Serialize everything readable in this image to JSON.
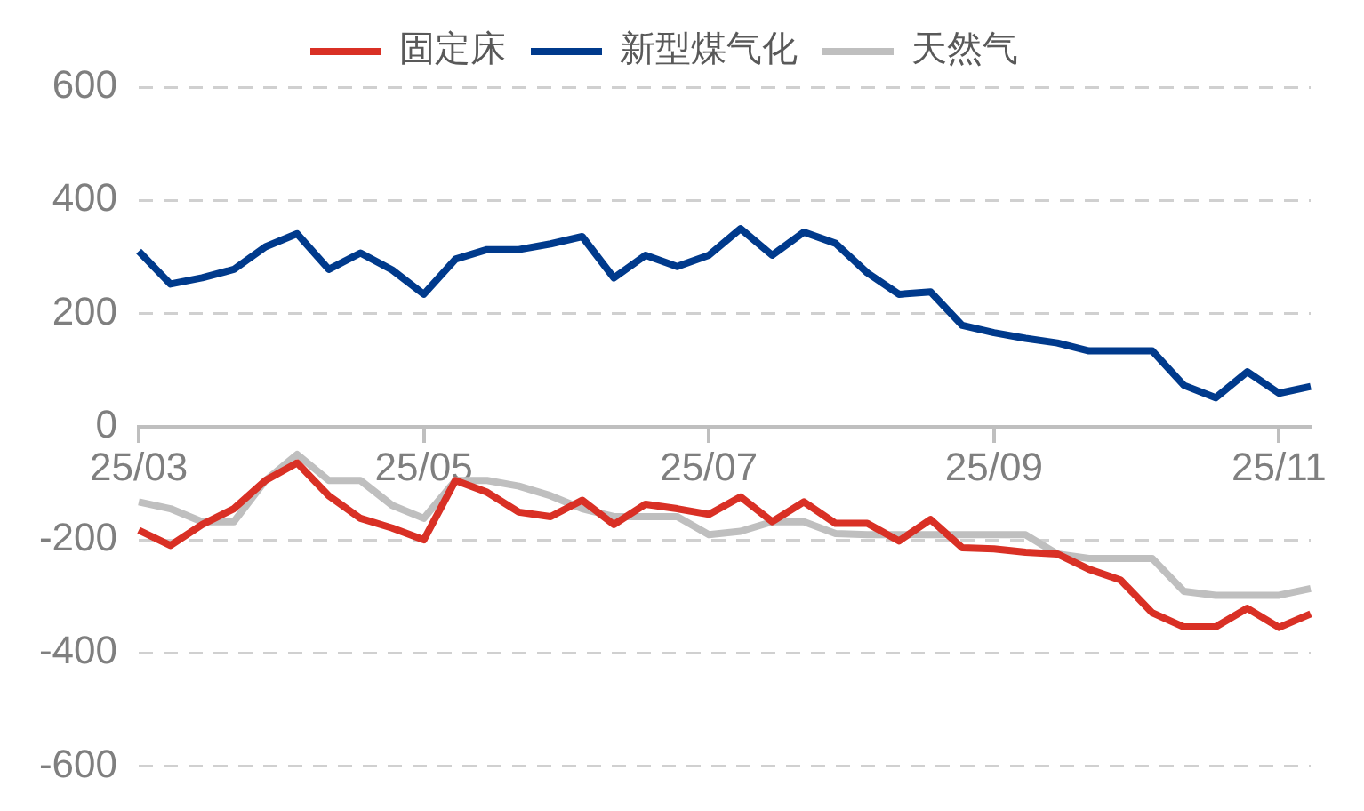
{
  "chart_data": {
    "type": "line",
    "categories": [
      "25/03",
      null,
      null,
      null,
      null,
      null,
      null,
      null,
      null,
      "25/05",
      null,
      null,
      null,
      null,
      null,
      null,
      null,
      null,
      "25/07",
      null,
      null,
      null,
      null,
      null,
      null,
      null,
      null,
      "25/09",
      null,
      null,
      null,
      null,
      null,
      null,
      null,
      null,
      "25/11",
      null
    ],
    "series": [
      {
        "name": "固定床",
        "color": "#d93025",
        "values": [
          -183,
          -210,
          -173,
          -145,
          -95,
          -64,
          -122,
          -162,
          -179,
          -200,
          -95,
          -116,
          -151,
          -159,
          -130,
          -173,
          -137,
          -145,
          -155,
          -124,
          -168,
          -133,
          -171,
          -171,
          -202,
          -164,
          -214,
          -216,
          -222,
          -225,
          -252,
          -271,
          -329,
          -354,
          -354,
          -321,
          -355,
          -331
        ]
      },
      {
        "name": "新型煤气化",
        "color": "#003a8c",
        "values": [
          310,
          252,
          263,
          278,
          318,
          341,
          278,
          307,
          277,
          234,
          296,
          313,
          313,
          323,
          336,
          263,
          303,
          283,
          303,
          350,
          303,
          344,
          324,
          272,
          234,
          238,
          179,
          166,
          156,
          148,
          134,
          134,
          134,
          73,
          51,
          97,
          59,
          71
        ]
      },
      {
        "name": "天然气",
        "color": "#bfbfbf",
        "values": [
          -133,
          -145,
          -168,
          -168,
          -95,
          -49,
          -95,
          -95,
          -139,
          -162,
          -95,
          -95,
          -105,
          -122,
          -145,
          -159,
          -159,
          -159,
          -191,
          -185,
          -168,
          -168,
          -189,
          -191,
          -191,
          -191,
          -191,
          -191,
          -191,
          -225,
          -233,
          -233,
          -233,
          -291,
          -298,
          -298,
          -298,
          -286
        ]
      }
    ],
    "ylim": [
      -600,
      600
    ],
    "yticks": [
      600,
      400,
      200,
      0,
      -200,
      -400,
      -600
    ],
    "grid": "y",
    "legend": "top",
    "marker": "none",
    "line_style": "solid"
  }
}
